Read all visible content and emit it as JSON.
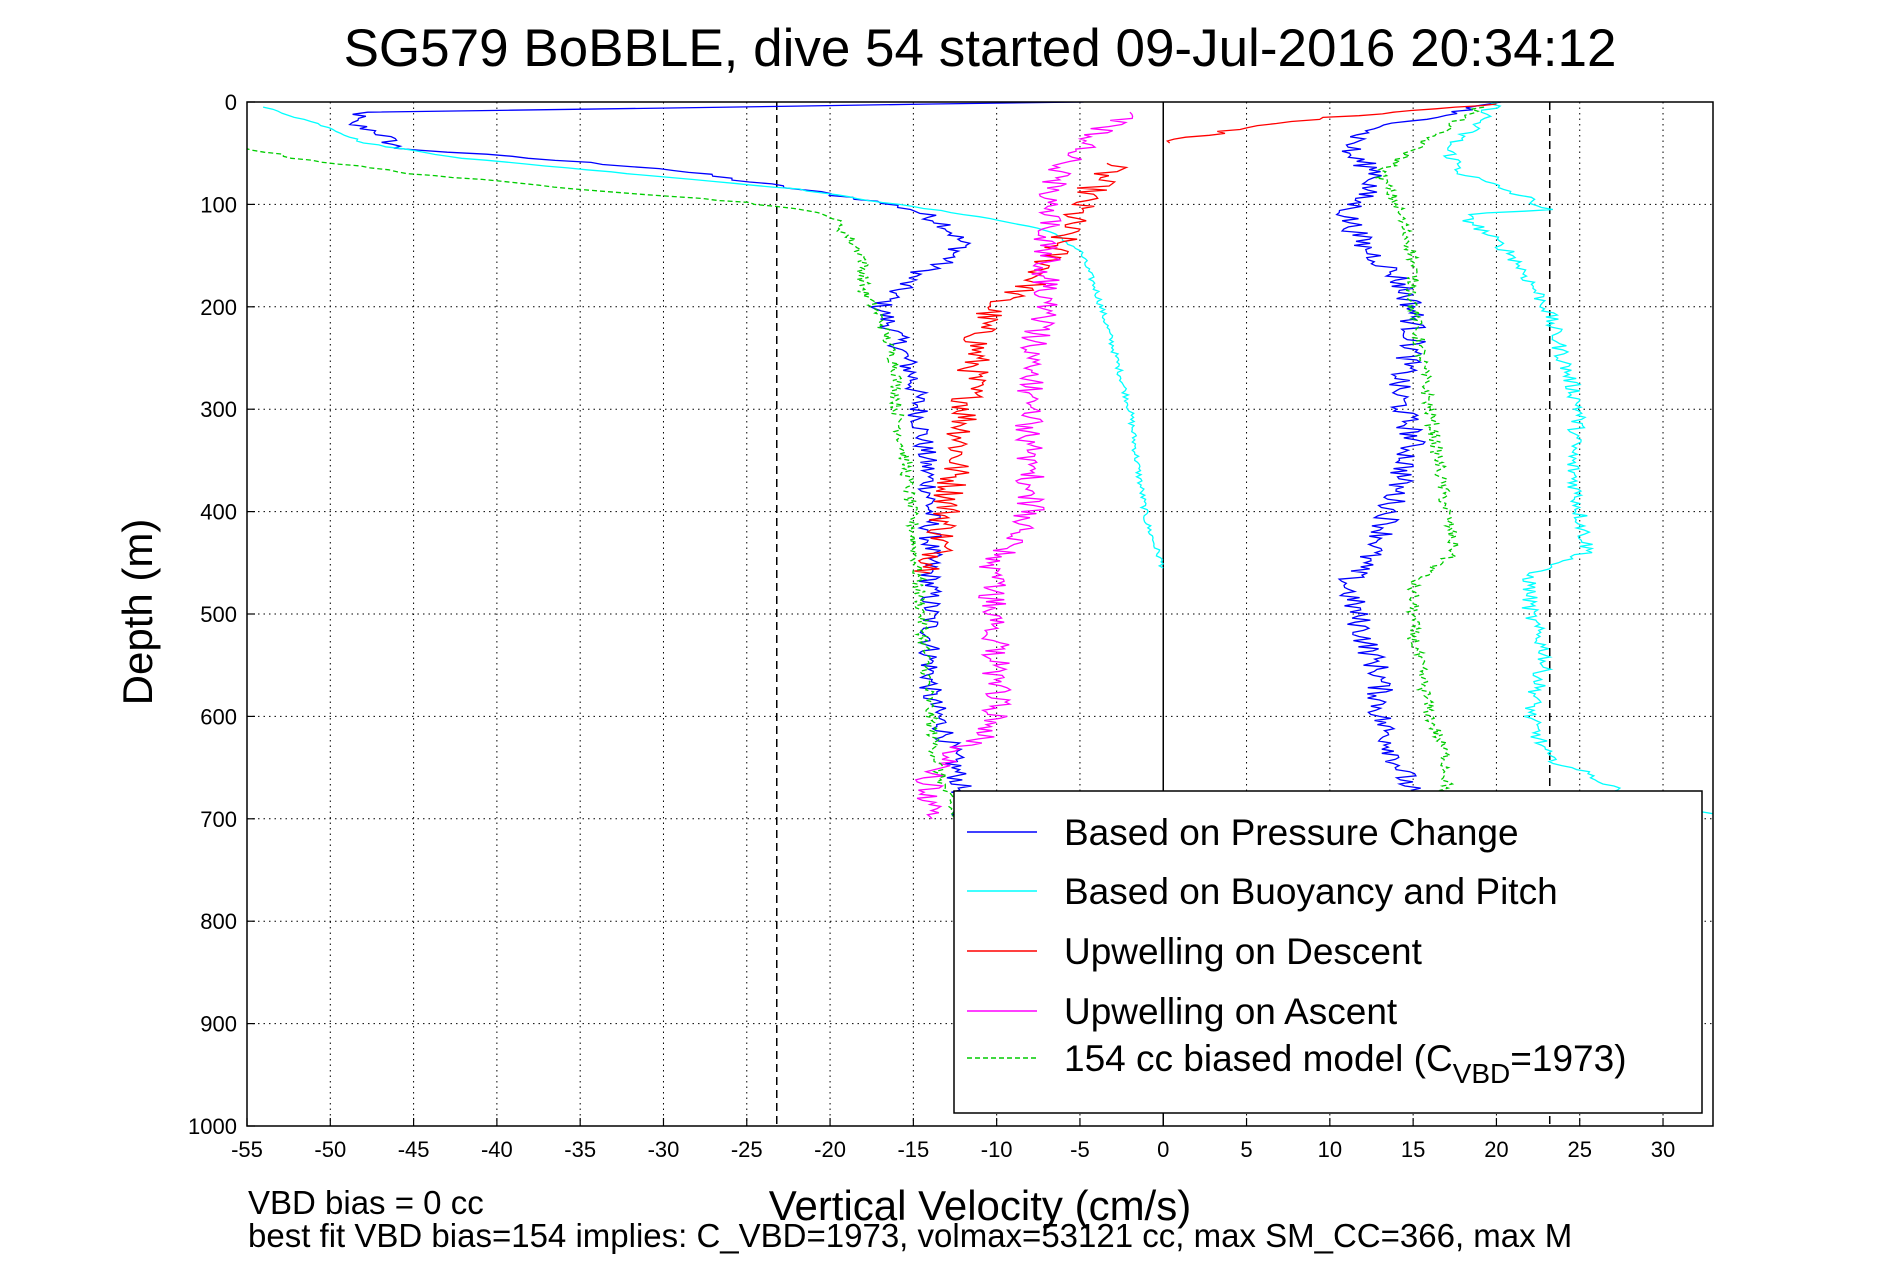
{
  "chart_data": {
    "type": "line",
    "title": "SG579 BoBBLE, dive 54 started 09-Jul-2016 20:34:12",
    "xlabel": "Vertical Velocity (cm/s)",
    "ylabel": "Depth (m)",
    "xlim": [
      -55,
      33
    ],
    "ylim": [
      0,
      1000
    ],
    "y_reversed": true,
    "grid": true,
    "xticks": [
      -55,
      -50,
      -45,
      -40,
      -35,
      -30,
      -25,
      -20,
      -15,
      -10,
      -5,
      0,
      5,
      10,
      15,
      20,
      25,
      30
    ],
    "yticks": [
      0,
      100,
      200,
      300,
      400,
      500,
      600,
      700,
      800,
      900,
      1000
    ],
    "vlines": [
      {
        "x": -23.2,
        "style": "dashed",
        "color": "#000000"
      },
      {
        "x": 0,
        "style": "solid",
        "color": "#000000"
      },
      {
        "x": 23.2,
        "style": "dashed",
        "color": "#000000"
      }
    ],
    "legend_position": "bottom-right",
    "legend": [
      {
        "label": "Based on Pressure Change",
        "color": "#0000ff",
        "dash": false
      },
      {
        "label": "Based on Buoyancy and Pitch",
        "color": "#00ffff",
        "dash": false
      },
      {
        "label": "Upwelling on Descent",
        "color": "#ff0000",
        "dash": false
      },
      {
        "label": "Upwelling on Ascent",
        "color": "#ff00ff",
        "dash": false
      },
      {
        "label": "154 cc biased model (C",
        "sub": "VBD",
        "suffix": "=1973)",
        "color": "#00cc00",
        "dash": true
      }
    ],
    "series": [
      {
        "name": "Based on Pressure Change",
        "color": "#0000ff",
        "dash": false,
        "noise": 0.7,
        "points": [
          [
            -5,
            0
          ],
          [
            -48,
            10
          ],
          [
            -49,
            20
          ],
          [
            -47,
            30
          ],
          [
            -46,
            45
          ],
          [
            -38,
            55
          ],
          [
            -30,
            65
          ],
          [
            -24,
            80
          ],
          [
            -18,
            95
          ],
          [
            -15,
            105
          ],
          [
            -13,
            120
          ],
          [
            -12,
            140
          ],
          [
            -13,
            155
          ],
          [
            -15,
            170
          ],
          [
            -16,
            185
          ],
          [
            -17,
            200
          ],
          [
            -16,
            230
          ],
          [
            -15,
            270
          ],
          [
            -14.5,
            320
          ],
          [
            -14,
            380
          ],
          [
            -14,
            450
          ],
          [
            -14,
            520
          ],
          [
            -14,
            580
          ],
          [
            -13,
            620
          ],
          [
            -12.5,
            650
          ],
          [
            -12,
            680
          ],
          [
            -12,
            700
          ]
        ]
      },
      {
        "name": "Based on Buoyancy and Pitch",
        "color": "#00ffff",
        "dash": false,
        "noise": 0.2,
        "points": [
          [
            -54,
            5
          ],
          [
            -50,
            25
          ],
          [
            -48,
            40
          ],
          [
            -42,
            55
          ],
          [
            -32,
            70
          ],
          [
            -22,
            85
          ],
          [
            -16,
            100
          ],
          [
            -11,
            112
          ],
          [
            -7,
            125
          ],
          [
            -5,
            145
          ],
          [
            -4,
            185
          ],
          [
            -3,
            240
          ],
          [
            -2,
            300
          ],
          [
            -1.5,
            360
          ],
          [
            -1,
            410
          ],
          [
            0,
            455
          ]
        ]
      },
      {
        "name": "Upwelling on Descent",
        "color": "#ff0000",
        "dash": false,
        "noise": 1.0,
        "points": [
          [
            -3,
            60
          ],
          [
            -4,
            80
          ],
          [
            -5,
            100
          ],
          [
            -6,
            130
          ],
          [
            -7,
            160
          ],
          [
            -8,
            180
          ],
          [
            -10,
            195
          ],
          [
            -11,
            220
          ],
          [
            -11.5,
            270
          ],
          [
            -12,
            320
          ],
          [
            -12.5,
            360
          ],
          [
            -13,
            400
          ],
          [
            -13.5,
            440
          ],
          [
            -14,
            460
          ]
        ]
      },
      {
        "name": "Upwelling on Ascent",
        "color": "#ff00ff",
        "dash": false,
        "noise": 0.9,
        "points": [
          [
            -13,
            700
          ],
          [
            -14,
            690
          ],
          [
            -14,
            660
          ],
          [
            -13,
            640
          ],
          [
            -11,
            620
          ],
          [
            -10,
            600
          ],
          [
            -10,
            560
          ],
          [
            -10,
            500
          ],
          [
            -10.5,
            460
          ],
          [
            -8,
            400
          ],
          [
            -8,
            350
          ],
          [
            -8,
            300
          ],
          [
            -8,
            250
          ],
          [
            -7,
            200
          ],
          [
            -7,
            150
          ],
          [
            -7,
            100
          ],
          [
            -6,
            60
          ],
          [
            -4,
            30
          ],
          [
            -2,
            10
          ]
        ]
      },
      {
        "name": "154 cc biased model (CVBD=1973)",
        "color": "#00cc00",
        "dash": true,
        "noise": 0.4,
        "points": [
          [
            -55,
            45
          ],
          [
            -52,
            55
          ],
          [
            -45,
            70
          ],
          [
            -35,
            85
          ],
          [
            -25,
            98
          ],
          [
            -20,
            110
          ],
          [
            -18,
            150
          ],
          [
            -18,
            185
          ],
          [
            -17,
            210
          ],
          [
            -16,
            260
          ],
          [
            -16,
            300
          ],
          [
            -15.5,
            350
          ],
          [
            -15,
            420
          ],
          [
            -14.5,
            500
          ],
          [
            -14,
            600
          ],
          [
            -13.5,
            650
          ],
          [
            -13,
            680
          ],
          [
            -12.5,
            700
          ]
        ]
      },
      {
        "name": "Based on Pressure Change (right)",
        "color": "#0000ff",
        "dash": false,
        "noise": 0.8,
        "points": [
          [
            20,
            0
          ],
          [
            16,
            15
          ],
          [
            12,
            30
          ],
          [
            11,
            50
          ],
          [
            13,
            70
          ],
          [
            12,
            90
          ],
          [
            11,
            110
          ],
          [
            12,
            140
          ],
          [
            14,
            170
          ],
          [
            15,
            200
          ],
          [
            15,
            240
          ],
          [
            14,
            280
          ],
          [
            15,
            330
          ],
          [
            14,
            380
          ],
          [
            13,
            430
          ],
          [
            11,
            470
          ],
          [
            12,
            520
          ],
          [
            13,
            560
          ],
          [
            13,
            600
          ],
          [
            14,
            640
          ],
          [
            15,
            680
          ]
        ]
      },
      {
        "name": "Based on Buoyancy and Pitch (right)",
        "color": "#00ffff",
        "dash": false,
        "noise": 0.5,
        "points": [
          [
            20,
            0
          ],
          [
            19,
            20
          ],
          [
            17,
            45
          ],
          [
            18,
            70
          ],
          [
            22,
            95
          ],
          [
            23,
            105
          ],
          [
            18,
            110
          ],
          [
            21,
            150
          ],
          [
            23,
            200
          ],
          [
            24,
            250
          ],
          [
            25,
            300
          ],
          [
            24.5,
            350
          ],
          [
            25,
            400
          ],
          [
            25.5,
            440
          ],
          [
            22,
            460
          ],
          [
            22,
            500
          ],
          [
            23,
            540
          ],
          [
            22,
            600
          ],
          [
            23,
            640
          ],
          [
            26,
            660
          ],
          [
            28,
            680
          ],
          [
            33,
            695
          ]
        ]
      },
      {
        "name": "Upwelling on Descent (right)",
        "color": "#ff0000",
        "dash": false,
        "noise": 0.6,
        "points": [
          [
            0,
            40
          ],
          [
            5,
            25
          ],
          [
            10,
            15
          ],
          [
            14,
            10
          ],
          [
            18,
            5
          ],
          [
            20,
            2
          ]
        ]
      },
      {
        "name": "154 cc biased model (right)",
        "color": "#00cc00",
        "dash": true,
        "noise": 0.4,
        "points": [
          [
            19,
            5
          ],
          [
            16,
            35
          ],
          [
            13,
            70
          ],
          [
            14,
            100
          ],
          [
            15,
            150
          ],
          [
            15,
            200
          ],
          [
            15.5,
            250
          ],
          [
            16,
            300
          ],
          [
            16.5,
            350
          ],
          [
            17,
            400
          ],
          [
            17.5,
            440
          ],
          [
            15,
            470
          ],
          [
            15,
            520
          ],
          [
            15.5,
            560
          ],
          [
            16,
            600
          ],
          [
            17,
            640
          ],
          [
            17,
            680
          ]
        ]
      }
    ],
    "footer_lines": [
      "VBD bias = 0 cc",
      "best fit VBD bias=154 implies: C_VBD=1973, volmax=53121 cc, max SM_CC=366, max M"
    ]
  }
}
